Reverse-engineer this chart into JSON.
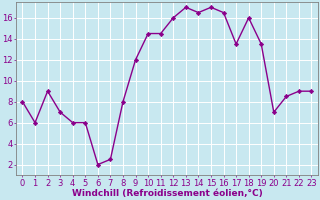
{
  "x": [
    0,
    1,
    2,
    3,
    4,
    5,
    6,
    7,
    8,
    9,
    10,
    11,
    12,
    13,
    14,
    15,
    16,
    17,
    18,
    19,
    20,
    21,
    22,
    23
  ],
  "y": [
    8,
    6,
    9,
    7,
    6,
    6,
    2,
    2.5,
    8,
    12,
    14.5,
    14.5,
    16,
    17,
    16.5,
    17,
    16.5,
    13.5,
    16,
    13.5,
    7,
    8.5,
    9,
    9
  ],
  "line_color": "#8B008B",
  "marker_color": "#8B008B",
  "bg_color": "#c8e8f0",
  "grid_color": "#ffffff",
  "xlabel": "Windchill (Refroidissement éolien,°C)",
  "xlabel_color": "#8B008B",
  "yticks": [
    2,
    4,
    6,
    8,
    10,
    12,
    14,
    16
  ],
  "ylim": [
    1.0,
    17.5
  ],
  "xlim": [
    -0.5,
    23.5
  ],
  "tick_label_color": "#8B008B",
  "xlabel_fontsize": 6.5,
  "tick_fontsize": 6.0,
  "linewidth": 1.0,
  "markersize": 2.2
}
